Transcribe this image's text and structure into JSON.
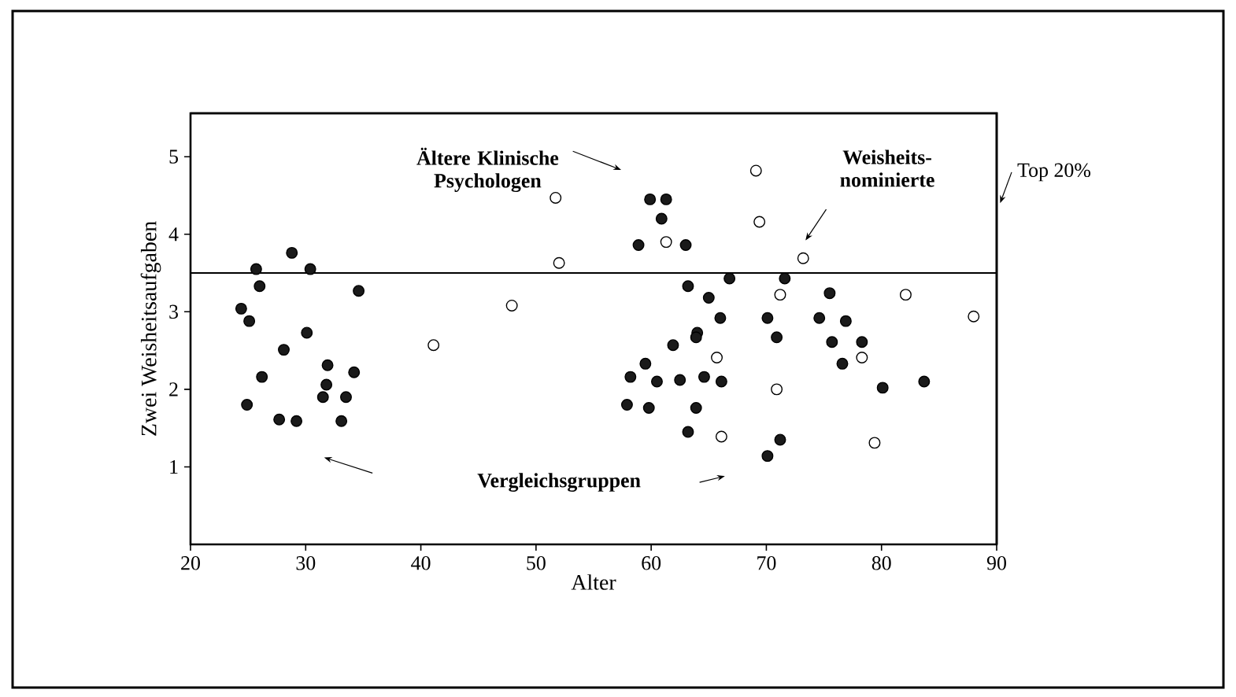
{
  "chart_data": {
    "type": "scatter",
    "xlabel": "Alter",
    "ylabel": "Zwei Weisheitsaufgaben",
    "xlim": [
      20,
      90
    ],
    "ylim": [
      0,
      5.56
    ],
    "xticks": [
      20,
      30,
      40,
      50,
      60,
      70,
      80,
      90
    ],
    "yticks": [
      1,
      2,
      3,
      4,
      5
    ],
    "grid": false,
    "series": [
      {
        "color": "#1a1a1a",
        "x": [
          25.7,
          26.0,
          28.8,
          30.4,
          34.6,
          24.4,
          25.1,
          30.1,
          28.1,
          26.2,
          31.9,
          34.2,
          31.8,
          31.5,
          33.5,
          24.9,
          27.7,
          29.2,
          33.1,
          59.9,
          61.3,
          60.9,
          58.9,
          63.0,
          63.2,
          65.0,
          66.8,
          71.6,
          66.0,
          70.1,
          75.5,
          74.6,
          76.9,
          70.9,
          64.0,
          61.9,
          75.7,
          78.3,
          76.6,
          59.5,
          58.2,
          60.5,
          62.5,
          64.6,
          66.1,
          80.1,
          83.7,
          57.9,
          59.8,
          63.9,
          63.2,
          70.1,
          71.2,
          63.9
        ],
        "values": [
          3.55,
          3.33,
          3.76,
          3.55,
          3.27,
          3.04,
          2.88,
          2.73,
          2.51,
          2.16,
          2.31,
          2.22,
          2.06,
          1.9,
          1.9,
          1.8,
          1.61,
          1.59,
          1.59,
          4.45,
          4.45,
          4.2,
          3.86,
          3.86,
          3.33,
          3.18,
          3.43,
          3.43,
          2.92,
          2.92,
          3.24,
          2.92,
          2.88,
          2.67,
          2.73,
          2.57,
          2.61,
          2.61,
          2.33,
          2.33,
          2.16,
          2.1,
          2.12,
          2.16,
          2.1,
          2.02,
          2.1,
          1.8,
          1.76,
          1.76,
          1.45,
          1.14,
          1.35,
          2.67
        ]
      },
      {
        "color": "#ffffff",
        "x": [
          51.7,
          52.0,
          47.9,
          41.1,
          69.1,
          69.4,
          61.3,
          73.2,
          71.2,
          82.1,
          88.0,
          65.7,
          78.3,
          70.9,
          66.1,
          79.4
        ],
        "values": [
          4.47,
          3.63,
          3.08,
          2.57,
          4.82,
          4.16,
          3.9,
          3.69,
          3.22,
          3.22,
          2.94,
          2.41,
          2.41,
          2.0,
          1.39,
          1.31
        ]
      }
    ],
    "ref_lines": [
      {
        "axis": "y",
        "value": 3.5,
        "label": "Top 20%"
      }
    ],
    "annotations": [
      "Ältere Klinische Psychologen",
      "Weisheits-nominierte",
      "Vergleichsgruppen"
    ]
  }
}
